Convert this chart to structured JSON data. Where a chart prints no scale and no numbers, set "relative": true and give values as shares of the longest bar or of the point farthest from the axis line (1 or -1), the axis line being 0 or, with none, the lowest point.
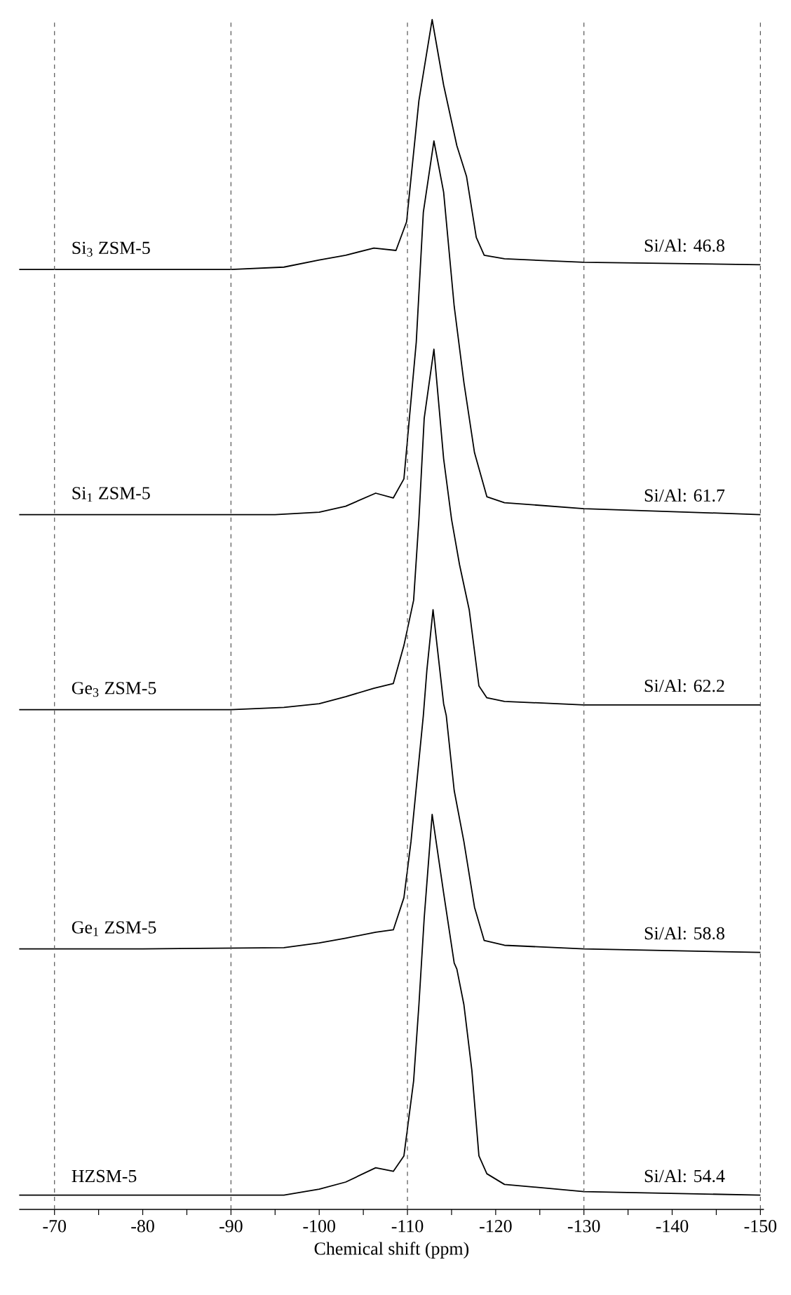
{
  "chart_data": {
    "type": "line",
    "relative": true,
    "xlabel": "Chemical shift (ppm)",
    "xlim": [
      -66,
      -150.4
    ],
    "xticks": [
      -70,
      {
        "value": -75,
        "label": null
      },
      -80,
      {
        "value": -85,
        "label": null
      },
      -90,
      {
        "value": -95,
        "label": null
      },
      -100,
      {
        "value": -105,
        "label": null
      },
      -110,
      {
        "value": -115,
        "label": null
      },
      -120,
      {
        "value": -125,
        "label": null
      },
      -130,
      {
        "value": -135,
        "label": null
      },
      -140,
      {
        "value": -145,
        "label": null
      },
      -150
    ],
    "marker": "none",
    "line_style": "solid",
    "series": [
      {
        "name": "Si$_{3}$ ZSM-5",
        "color": "#000000",
        "x": [
          -66,
          -80,
          -90,
          -96,
          -100,
          -103,
          -106.2,
          -108.7,
          -109.9,
          -111.3,
          -112.8,
          -114.1,
          -115.6,
          -116.7,
          -117.8,
          -118.7,
          -121,
          -130,
          -150
        ],
        "values": [
          0.79,
          0.79,
          0.79,
          0.792,
          0.798,
          0.802,
          0.808,
          0.806,
          0.83,
          0.932,
          1.0,
          0.945,
          0.894,
          0.868,
          0.817,
          0.802,
          0.799,
          0.796,
          0.794
        ]
      },
      {
        "name": "Si$_{1}$ ZSM-5",
        "color": "#000000",
        "x": [
          -66,
          -80,
          -95,
          -100,
          -103,
          -106.4,
          -108.4,
          -109.6,
          -111,
          -111.8,
          -113,
          -114.1,
          -115.3,
          -116.4,
          -117.6,
          -119,
          -121,
          -130,
          -150
        ],
        "values": [
          0.584,
          0.584,
          0.584,
          0.586,
          0.591,
          0.602,
          0.598,
          0.614,
          0.729,
          0.838,
          0.898,
          0.855,
          0.759,
          0.695,
          0.636,
          0.599,
          0.594,
          0.589,
          0.584
        ]
      },
      {
        "name": "Ge$_{3}$ ZSM-5",
        "color": "#000000",
        "x": [
          -66,
          -80,
          -90,
          -96,
          -100,
          -103,
          -106.2,
          -108.4,
          -109.6,
          -110.7,
          -111.3,
          -111.9,
          -113,
          -114.1,
          -115,
          -115.9,
          -117,
          -118.1,
          -119,
          -121,
          -130,
          -150
        ],
        "values": [
          0.42,
          0.42,
          0.42,
          0.422,
          0.425,
          0.431,
          0.438,
          0.442,
          0.474,
          0.512,
          0.58,
          0.665,
          0.723,
          0.631,
          0.58,
          0.542,
          0.504,
          0.44,
          0.43,
          0.427,
          0.424,
          0.424
        ]
      },
      {
        "name": "Ge$_{1}$ ZSM-5",
        "color": "#000000",
        "x": [
          -66,
          -80,
          -96,
          -100,
          -103,
          -106.4,
          -108.4,
          -109.6,
          -110.4,
          -111.8,
          -112.2,
          -112.9,
          -114.1,
          -114.4,
          -115.3,
          -116.4,
          -117.6,
          -118.7,
          -121,
          -130,
          -150
        ],
        "values": [
          0.219,
          0.219,
          0.22,
          0.224,
          0.228,
          0.233,
          0.235,
          0.262,
          0.309,
          0.415,
          0.453,
          0.504,
          0.425,
          0.415,
          0.352,
          0.309,
          0.254,
          0.226,
          0.222,
          0.219,
          0.216
        ]
      },
      {
        "name": "HZSM-5",
        "color": "#000000",
        "x": [
          -66,
          -80,
          -96,
          -100,
          -103,
          -106.4,
          -108.4,
          -109.6,
          -110.7,
          -111.3,
          -111.9,
          -112.8,
          -114.1,
          -115.3,
          -115.6,
          -116.4,
          -117.3,
          -118.1,
          -119,
          -121,
          -130,
          -150
        ],
        "values": [
          0.012,
          0.012,
          0.012,
          0.017,
          0.023,
          0.035,
          0.032,
          0.045,
          0.108,
          0.172,
          0.245,
          0.332,
          0.266,
          0.207,
          0.202,
          0.172,
          0.117,
          0.045,
          0.03,
          0.021,
          0.015,
          0.012
        ]
      }
    ],
    "annotations": [
      "Si/Al: 46.8",
      "Si/Al: 61.7",
      "Si/Al: 62.2",
      "Si/Al: 58.8",
      "Si/Al: 54.4"
    ],
    "ref_lines": [
      {
        "axis": "x",
        "value": -70,
        "color": "#555555",
        "line_style": "dashed"
      },
      {
        "axis": "x",
        "value": -90,
        "color": "#555555",
        "line_style": "dashed"
      },
      {
        "axis": "x",
        "value": -110,
        "color": "#555555",
        "line_style": "dashed"
      },
      {
        "axis": "x",
        "value": -130,
        "color": "#555555",
        "line_style": "dashed"
      },
      {
        "axis": "x",
        "value": -150,
        "color": "#555555",
        "line_style": "dashed"
      }
    ]
  }
}
